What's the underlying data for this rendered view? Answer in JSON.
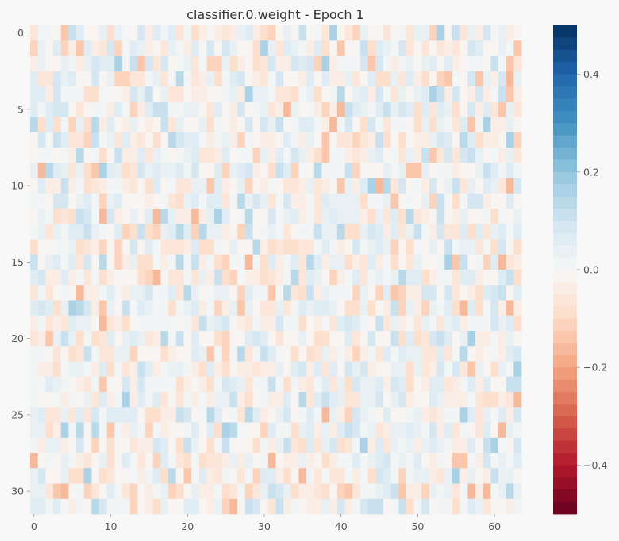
{
  "chart_data": {
    "type": "heatmap",
    "title": "classifier.0.weight - Epoch 1",
    "rows": 32,
    "cols": 64,
    "value_range": [
      -0.5,
      0.5
    ],
    "distribution": "near-zero random weights, mostly between -0.15 and 0.15",
    "x_ticks": [
      0,
      10,
      20,
      30,
      40,
      50,
      60
    ],
    "y_ticks": [
      0,
      5,
      10,
      15,
      20,
      25,
      30
    ],
    "colorbar": {
      "colormap": "RdBu",
      "ticks": [
        {
          "value": 0.4,
          "label": "0.4"
        },
        {
          "value": 0.2,
          "label": "0.2"
        },
        {
          "value": 0.0,
          "label": "0.0"
        },
        {
          "value": -0.2,
          "label": "−0.2"
        },
        {
          "value": -0.4,
          "label": "−0.4"
        }
      ]
    },
    "colors": {
      "background": "#f8f8f8",
      "text": "#555555",
      "title": "#333333"
    }
  }
}
